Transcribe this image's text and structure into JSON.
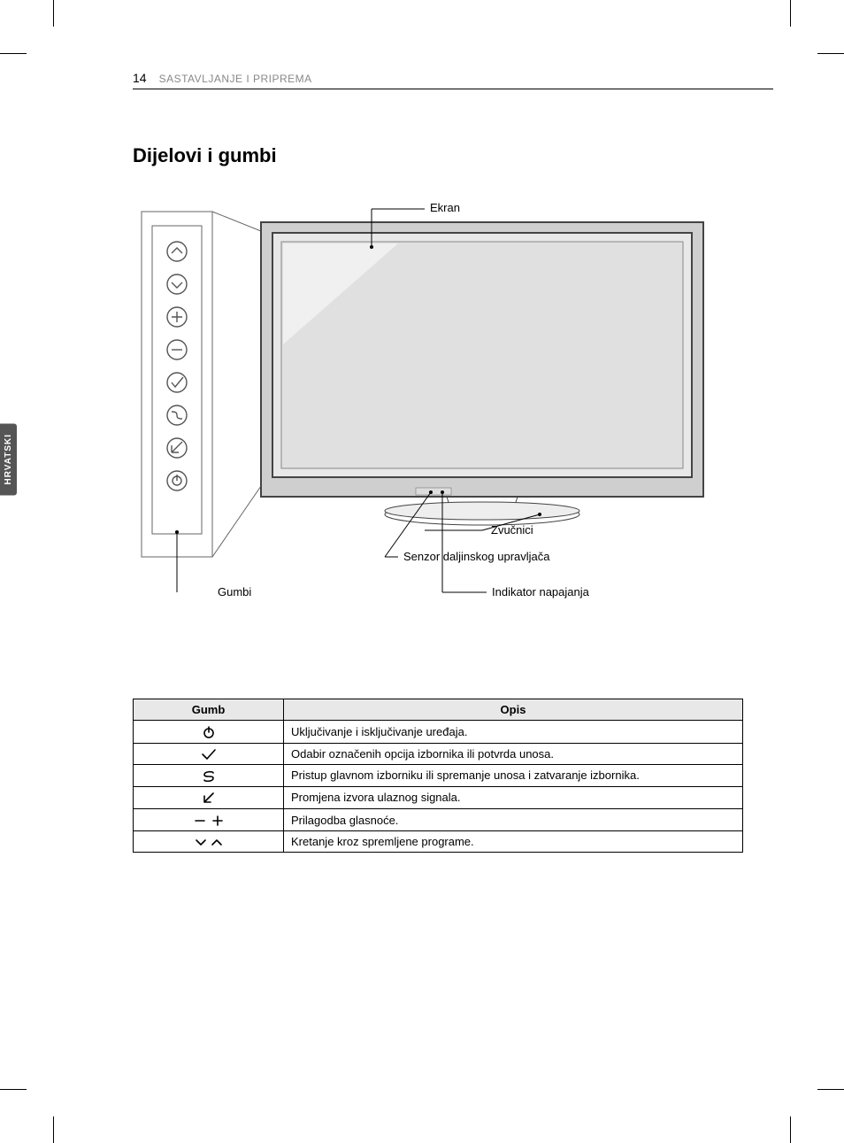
{
  "page": {
    "number": "14",
    "header": "SASTAVLJANJE I PRIPREMA",
    "section_title": "Dijelovi i gumbi",
    "side_tab": "HRVATSKI"
  },
  "diagram": {
    "labels": {
      "ekran": "Ekran",
      "zvucnici": "Zvučnici",
      "senzor": "Senzor daljinskog upravljača",
      "indikator": "Indikator napajanja",
      "gumbi": "Gumbi"
    },
    "colors": {
      "outline": "#000000",
      "panel_outline": "#666666",
      "screen_fill": "#cccccc",
      "screen_inner": "#e5e5e5",
      "bezel": "#444444",
      "button_stroke": "#555555"
    }
  },
  "table": {
    "headers": {
      "gumb": "Gumb",
      "opis": "Opis"
    },
    "rows": [
      {
        "icon": "power",
        "desc": "Uključivanje i isključivanje uređaja."
      },
      {
        "icon": "check",
        "desc": "Odabir označenih opcija izbornika ili potvrda unosa."
      },
      {
        "icon": "s",
        "desc": "Pristup glavnom izborniku ili spremanje unosa i zatvaranje izbornika."
      },
      {
        "icon": "arrow",
        "desc": "Promjena izvora ulaznog signala."
      },
      {
        "icon": "plusminus",
        "desc": "Prilagodba glasnoće."
      },
      {
        "icon": "updown",
        "desc": "Kretanje kroz spremljene programe."
      }
    ],
    "header_bg": "#e8e8e8",
    "border_color": "#000000",
    "font_size": 13
  }
}
